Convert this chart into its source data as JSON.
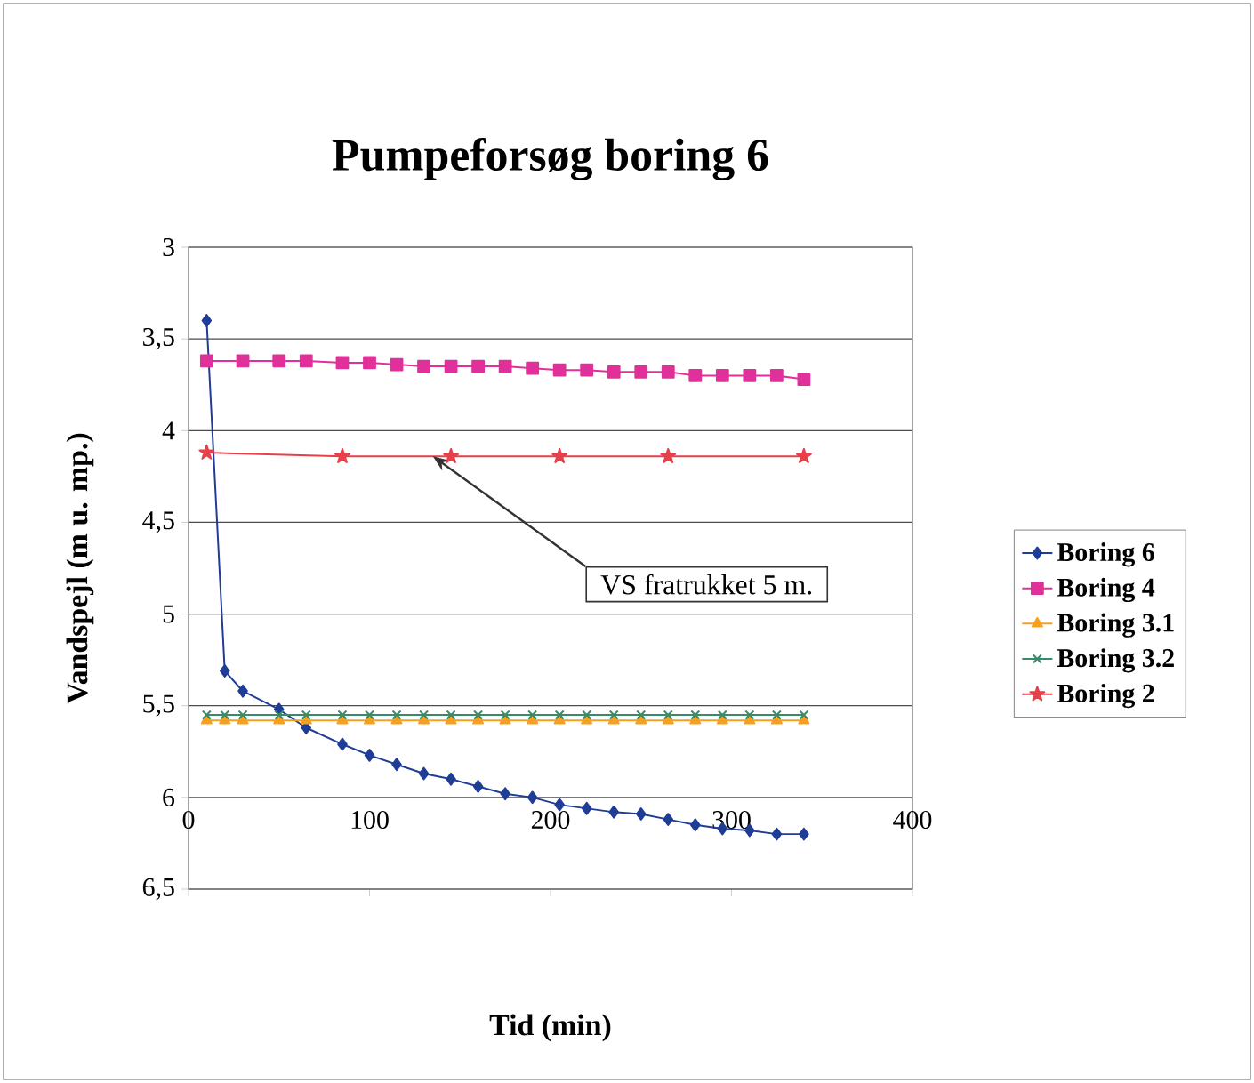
{
  "chart_data": {
    "type": "line",
    "title": "Pumpeforsøg boring 6",
    "xlabel": "Tid (min)",
    "ylabel": "Vandspejl (m u. mp.)",
    "xlim": [
      0,
      400
    ],
    "xticks": [
      0,
      100,
      200,
      300,
      400
    ],
    "ylim": [
      6.5,
      3
    ],
    "yticks": [
      3,
      {
        "value": 3.5,
        "label": "3,5"
      },
      4,
      {
        "value": 4.5,
        "label": "4,5"
      },
      5,
      {
        "value": 5.5,
        "label": "5,5"
      },
      6,
      {
        "value": 6.5,
        "label": "6,5"
      }
    ],
    "grid": "y",
    "legend": "right",
    "line_style": "solid",
    "annotations": [
      {
        "text": "VS fratrukket 5 m.",
        "x": 135,
        "y": 4.14
      }
    ],
    "series": [
      {
        "name": "Boring 6",
        "color": "#1f3c96",
        "marker": "diamond",
        "x": [
          10,
          20,
          30,
          50,
          65,
          85,
          100,
          115,
          130,
          145,
          160,
          175,
          190,
          205,
          220,
          235,
          250,
          265,
          280,
          295,
          310,
          325,
          340
        ],
        "values": [
          3.4,
          5.31,
          5.42,
          5.52,
          5.62,
          5.71,
          5.77,
          5.82,
          5.87,
          5.9,
          5.94,
          5.98,
          6.0,
          6.04,
          6.06,
          6.08,
          6.09,
          6.12,
          6.15,
          6.17,
          6.18,
          6.2,
          6.2
        ]
      },
      {
        "name": "Boring 4",
        "color": "#e0309a",
        "marker": "square",
        "x": [
          10,
          30,
          50,
          65,
          85,
          100,
          115,
          130,
          145,
          160,
          175,
          190,
          205,
          220,
          235,
          250,
          265,
          280,
          295,
          310,
          325,
          340
        ],
        "values": [
          3.62,
          3.62,
          3.62,
          3.62,
          3.63,
          3.63,
          3.64,
          3.65,
          3.65,
          3.65,
          3.65,
          3.66,
          3.67,
          3.67,
          3.68,
          3.68,
          3.68,
          3.7,
          3.7,
          3.7,
          3.7,
          3.72
        ]
      },
      {
        "name": "Boring 3.1",
        "color": "#f5a020",
        "marker": "triangle",
        "x": [
          10,
          20,
          30,
          50,
          65,
          85,
          100,
          115,
          130,
          145,
          160,
          175,
          190,
          205,
          220,
          235,
          250,
          265,
          280,
          295,
          310,
          325,
          340
        ],
        "values": [
          5.58,
          5.58,
          5.58,
          5.58,
          5.58,
          5.58,
          5.58,
          5.58,
          5.58,
          5.58,
          5.58,
          5.58,
          5.58,
          5.58,
          5.58,
          5.58,
          5.58,
          5.58,
          5.58,
          5.58,
          5.58,
          5.58,
          5.58
        ]
      },
      {
        "name": "Boring 3.2",
        "color": "#3a8a6a",
        "marker": "cross",
        "x": [
          10,
          20,
          30,
          50,
          65,
          85,
          100,
          115,
          130,
          145,
          160,
          175,
          190,
          205,
          220,
          235,
          250,
          265,
          280,
          295,
          310,
          325,
          340
        ],
        "values": [
          5.55,
          5.55,
          5.55,
          5.55,
          5.55,
          5.55,
          5.55,
          5.55,
          5.55,
          5.55,
          5.55,
          5.55,
          5.55,
          5.55,
          5.55,
          5.55,
          5.55,
          5.55,
          5.55,
          5.55,
          5.55,
          5.55,
          5.55
        ]
      },
      {
        "name": "Boring 2",
        "color": "#e8404a",
        "marker": "star",
        "x": [
          10,
          85,
          145,
          205,
          265,
          340
        ],
        "values": [
          4.12,
          4.14,
          4.14,
          4.14,
          4.14,
          4.14
        ]
      }
    ]
  }
}
